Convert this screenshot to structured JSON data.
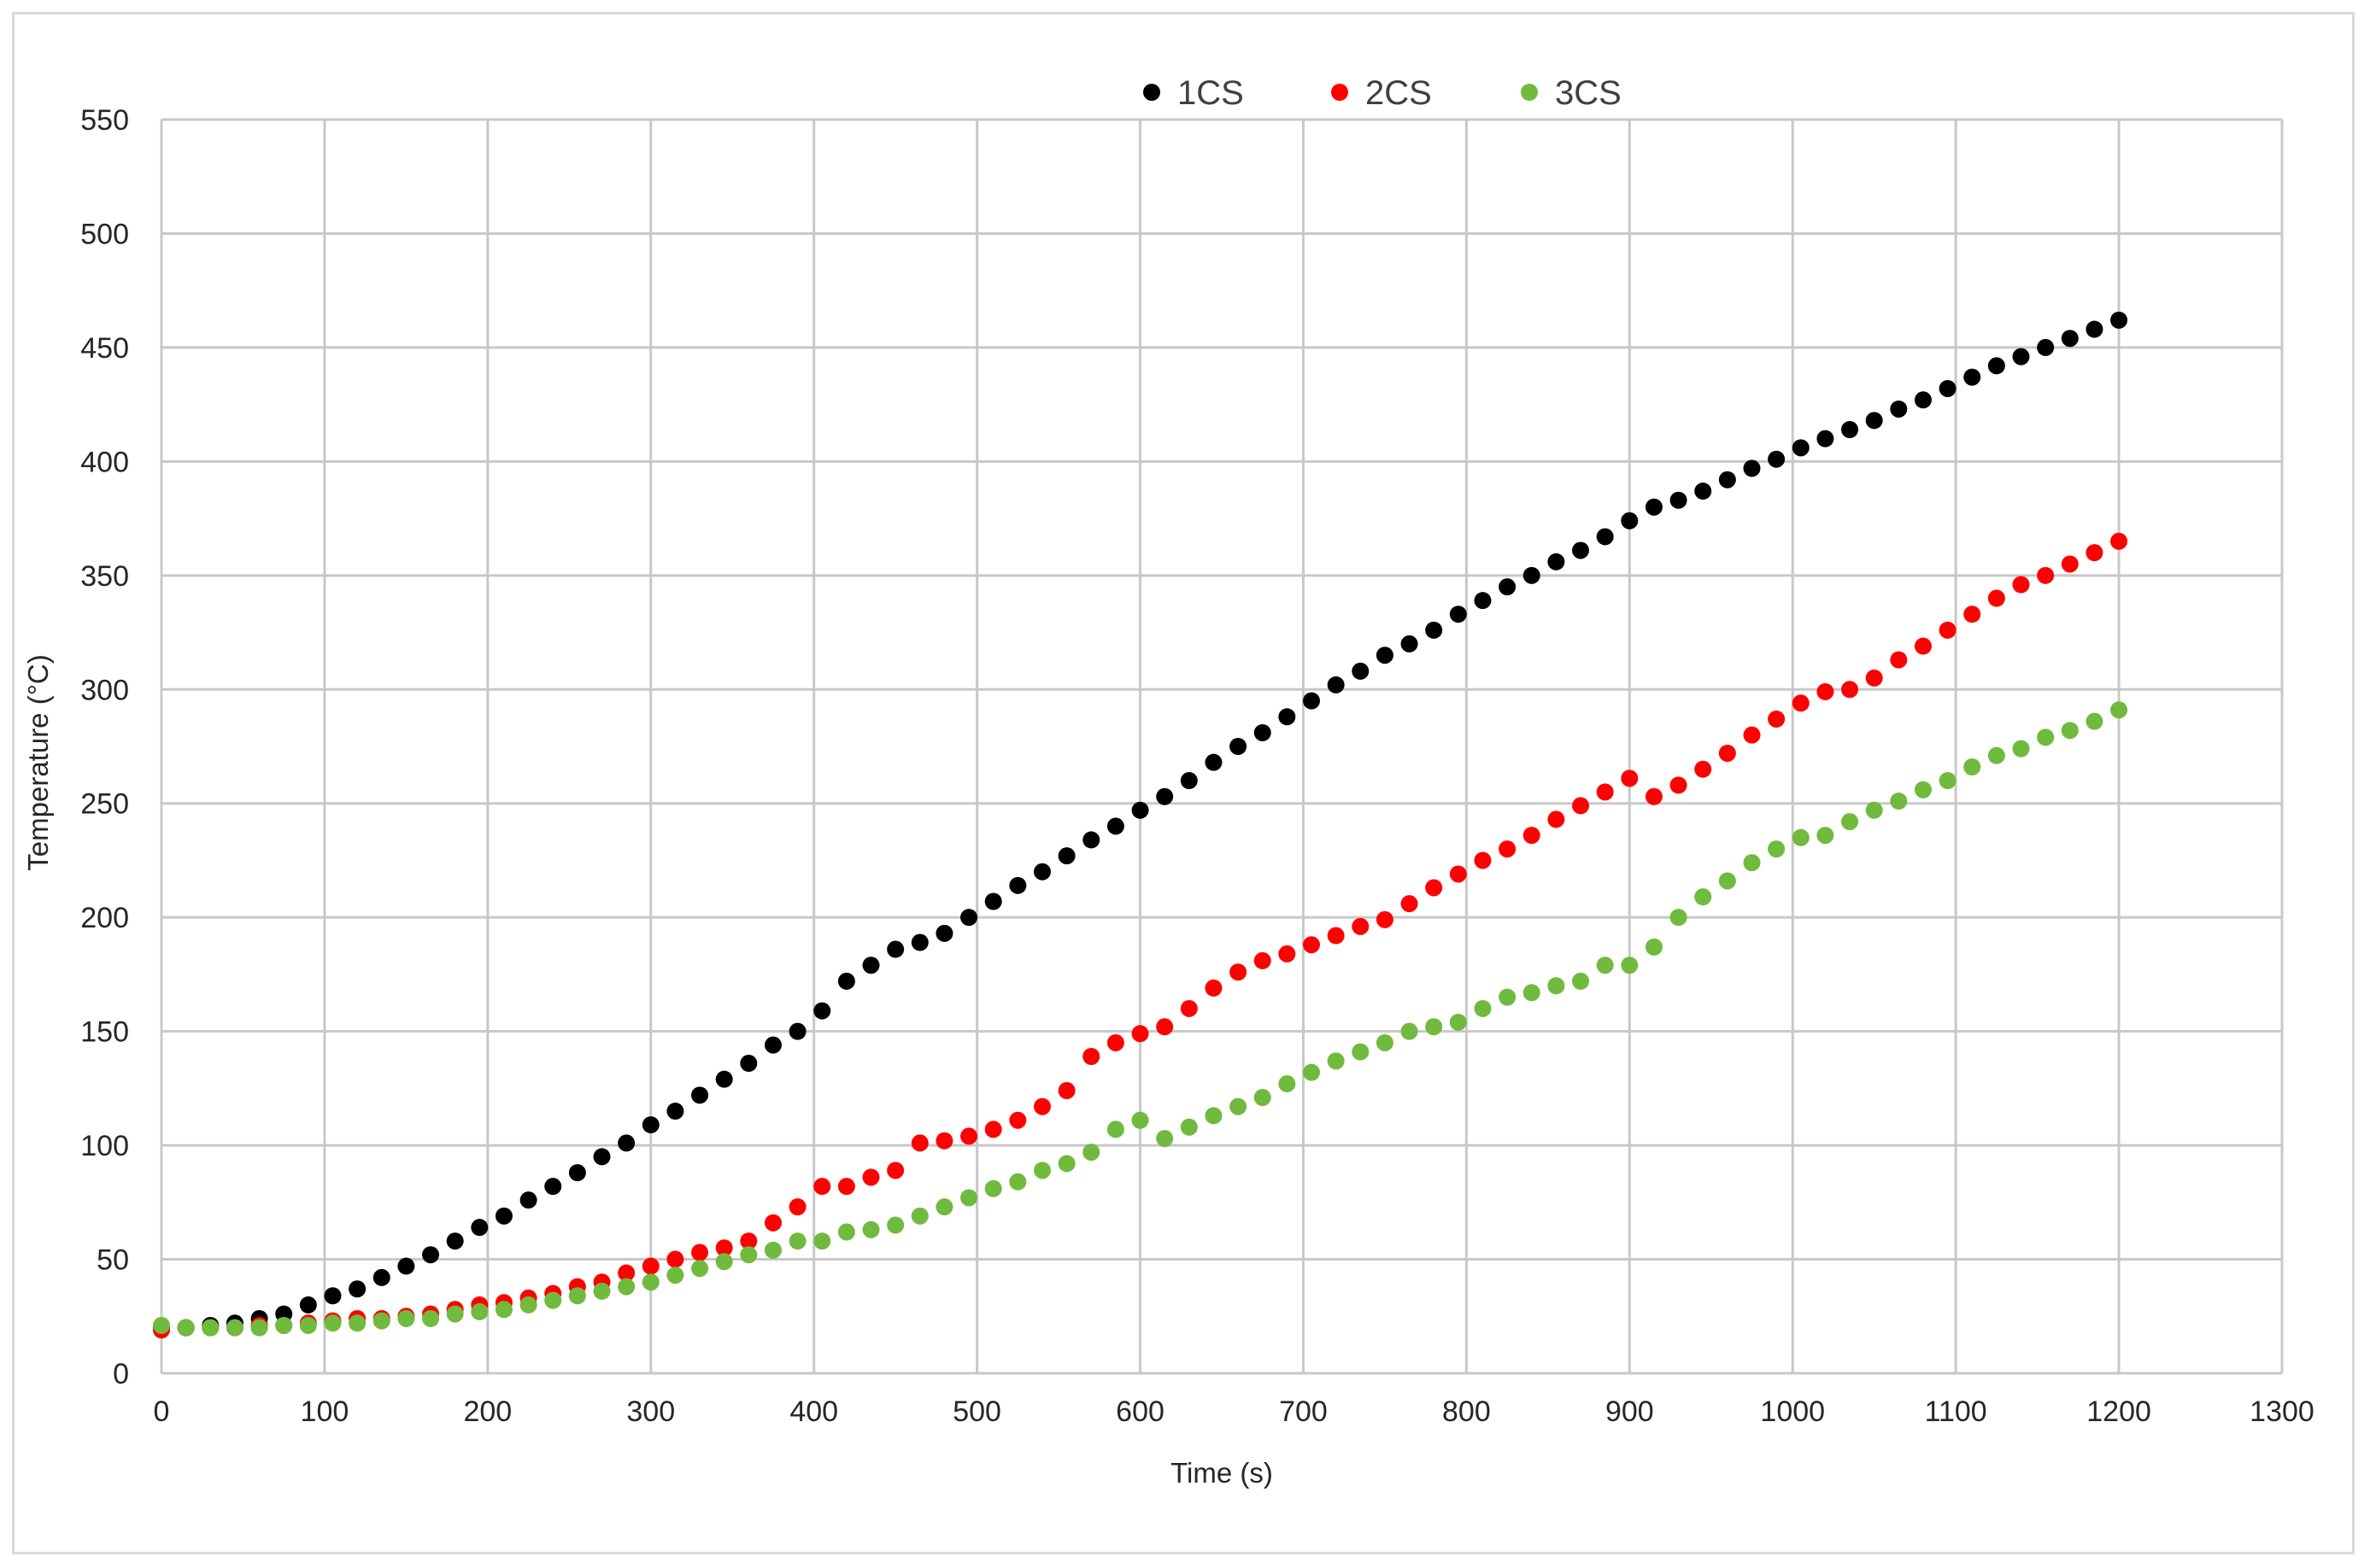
{
  "chart_data": {
    "type": "scatter",
    "title": "",
    "xlabel": "Time (s)",
    "ylabel": "Temperature (°C)",
    "xlim": [
      0,
      1300
    ],
    "ylim": [
      0,
      550
    ],
    "xticks": [
      0,
      100,
      200,
      300,
      400,
      500,
      600,
      700,
      800,
      900,
      1000,
      1100,
      1200,
      1300
    ],
    "yticks": [
      0,
      50,
      100,
      150,
      200,
      250,
      300,
      350,
      400,
      450,
      500,
      550
    ],
    "grid": true,
    "legend_position": "top-center",
    "series": [
      {
        "name": "1CS",
        "color": "#000000",
        "points": [
          [
            0,
            20
          ],
          [
            15,
            20
          ],
          [
            30,
            21
          ],
          [
            45,
            22
          ],
          [
            60,
            24
          ],
          [
            75,
            26
          ],
          [
            90,
            30
          ],
          [
            105,
            34
          ],
          [
            120,
            37
          ],
          [
            135,
            42
          ],
          [
            150,
            47
          ],
          [
            165,
            52
          ],
          [
            180,
            58
          ],
          [
            195,
            64
          ],
          [
            210,
            69
          ],
          [
            225,
            76
          ],
          [
            240,
            82
          ],
          [
            255,
            88
          ],
          [
            270,
            95
          ],
          [
            285,
            101
          ],
          [
            300,
            109
          ],
          [
            315,
            115
          ],
          [
            330,
            122
          ],
          [
            345,
            129
          ],
          [
            360,
            136
          ],
          [
            375,
            144
          ],
          [
            390,
            150
          ],
          [
            405,
            159
          ],
          [
            420,
            172
          ],
          [
            435,
            179
          ],
          [
            450,
            186
          ],
          [
            465,
            189
          ],
          [
            480,
            193
          ],
          [
            495,
            200
          ],
          [
            510,
            207
          ],
          [
            525,
            214
          ],
          [
            540,
            220
          ],
          [
            555,
            227
          ],
          [
            570,
            234
          ],
          [
            585,
            240
          ],
          [
            600,
            247
          ],
          [
            615,
            253
          ],
          [
            630,
            260
          ],
          [
            645,
            268
          ],
          [
            660,
            275
          ],
          [
            675,
            281
          ],
          [
            690,
            288
          ],
          [
            705,
            295
          ],
          [
            720,
            302
          ],
          [
            735,
            308
          ],
          [
            750,
            315
          ],
          [
            765,
            320
          ],
          [
            780,
            326
          ],
          [
            795,
            333
          ],
          [
            810,
            339
          ],
          [
            825,
            345
          ],
          [
            840,
            350
          ],
          [
            855,
            356
          ],
          [
            870,
            361
          ],
          [
            885,
            367
          ],
          [
            900,
            374
          ],
          [
            915,
            380
          ],
          [
            930,
            383
          ],
          [
            945,
            387
          ],
          [
            960,
            392
          ],
          [
            975,
            397
          ],
          [
            990,
            401
          ],
          [
            1005,
            406
          ],
          [
            1020,
            410
          ],
          [
            1035,
            414
          ],
          [
            1050,
            418
          ],
          [
            1065,
            423
          ],
          [
            1080,
            427
          ],
          [
            1095,
            432
          ],
          [
            1110,
            437
          ],
          [
            1125,
            442
          ],
          [
            1140,
            446
          ],
          [
            1155,
            450
          ],
          [
            1170,
            454
          ],
          [
            1185,
            458
          ],
          [
            1200,
            462
          ]
        ]
      },
      {
        "name": "2CS",
        "color": "#ff0000",
        "points": [
          [
            0,
            19
          ],
          [
            15,
            20
          ],
          [
            30,
            20
          ],
          [
            45,
            20
          ],
          [
            60,
            21
          ],
          [
            75,
            21
          ],
          [
            90,
            22
          ],
          [
            105,
            23
          ],
          [
            120,
            24
          ],
          [
            135,
            24
          ],
          [
            150,
            25
          ],
          [
            165,
            26
          ],
          [
            180,
            28
          ],
          [
            195,
            30
          ],
          [
            210,
            31
          ],
          [
            225,
            33
          ],
          [
            240,
            35
          ],
          [
            255,
            38
          ],
          [
            270,
            40
          ],
          [
            285,
            44
          ],
          [
            300,
            47
          ],
          [
            315,
            50
          ],
          [
            330,
            53
          ],
          [
            345,
            55
          ],
          [
            360,
            58
          ],
          [
            375,
            66
          ],
          [
            390,
            73
          ],
          [
            405,
            82
          ],
          [
            420,
            82
          ],
          [
            435,
            86
          ],
          [
            450,
            89
          ],
          [
            465,
            101
          ],
          [
            480,
            102
          ],
          [
            495,
            104
          ],
          [
            510,
            107
          ],
          [
            525,
            111
          ],
          [
            540,
            117
          ],
          [
            555,
            124
          ],
          [
            570,
            139
          ],
          [
            585,
            145
          ],
          [
            600,
            149
          ],
          [
            615,
            152
          ],
          [
            630,
            160
          ],
          [
            645,
            169
          ],
          [
            660,
            176
          ],
          [
            675,
            181
          ],
          [
            690,
            184
          ],
          [
            705,
            188
          ],
          [
            720,
            192
          ],
          [
            735,
            196
          ],
          [
            750,
            199
          ],
          [
            765,
            206
          ],
          [
            780,
            213
          ],
          [
            795,
            219
          ],
          [
            810,
            225
          ],
          [
            825,
            230
          ],
          [
            840,
            236
          ],
          [
            855,
            243
          ],
          [
            870,
            249
          ],
          [
            885,
            255
          ],
          [
            900,
            261
          ],
          [
            915,
            253
          ],
          [
            930,
            258
          ],
          [
            945,
            265
          ],
          [
            960,
            272
          ],
          [
            975,
            280
          ],
          [
            990,
            287
          ],
          [
            1005,
            294
          ],
          [
            1020,
            299
          ],
          [
            1035,
            300
          ],
          [
            1050,
            305
          ],
          [
            1065,
            313
          ],
          [
            1080,
            319
          ],
          [
            1095,
            326
          ],
          [
            1110,
            333
          ],
          [
            1125,
            340
          ],
          [
            1140,
            346
          ],
          [
            1155,
            350
          ],
          [
            1170,
            355
          ],
          [
            1185,
            360
          ],
          [
            1200,
            365
          ]
        ]
      },
      {
        "name": "3CS",
        "color": "#70ba3e",
        "points": [
          [
            0,
            21
          ],
          [
            15,
            20
          ],
          [
            30,
            20
          ],
          [
            45,
            20
          ],
          [
            60,
            20
          ],
          [
            75,
            21
          ],
          [
            90,
            21
          ],
          [
            105,
            22
          ],
          [
            120,
            22
          ],
          [
            135,
            23
          ],
          [
            150,
            24
          ],
          [
            165,
            24
          ],
          [
            180,
            26
          ],
          [
            195,
            27
          ],
          [
            210,
            28
          ],
          [
            225,
            30
          ],
          [
            240,
            32
          ],
          [
            255,
            34
          ],
          [
            270,
            36
          ],
          [
            285,
            38
          ],
          [
            300,
            40
          ],
          [
            315,
            43
          ],
          [
            330,
            46
          ],
          [
            345,
            49
          ],
          [
            360,
            52
          ],
          [
            375,
            54
          ],
          [
            390,
            58
          ],
          [
            405,
            58
          ],
          [
            420,
            62
          ],
          [
            435,
            63
          ],
          [
            450,
            65
          ],
          [
            465,
            69
          ],
          [
            480,
            73
          ],
          [
            495,
            77
          ],
          [
            510,
            81
          ],
          [
            525,
            84
          ],
          [
            540,
            89
          ],
          [
            555,
            92
          ],
          [
            570,
            97
          ],
          [
            585,
            107
          ],
          [
            600,
            111
          ],
          [
            615,
            103
          ],
          [
            630,
            108
          ],
          [
            645,
            113
          ],
          [
            660,
            117
          ],
          [
            675,
            121
          ],
          [
            690,
            127
          ],
          [
            705,
            132
          ],
          [
            720,
            137
          ],
          [
            735,
            141
          ],
          [
            750,
            145
          ],
          [
            765,
            150
          ],
          [
            780,
            152
          ],
          [
            795,
            154
          ],
          [
            810,
            160
          ],
          [
            825,
            165
          ],
          [
            840,
            167
          ],
          [
            855,
            170
          ],
          [
            870,
            172
          ],
          [
            885,
            179
          ],
          [
            900,
            179
          ],
          [
            915,
            187
          ],
          [
            930,
            200
          ],
          [
            945,
            209
          ],
          [
            960,
            216
          ],
          [
            975,
            224
          ],
          [
            990,
            230
          ],
          [
            1005,
            235
          ],
          [
            1020,
            236
          ],
          [
            1035,
            242
          ],
          [
            1050,
            247
          ],
          [
            1065,
            251
          ],
          [
            1080,
            256
          ],
          [
            1095,
            260
          ],
          [
            1110,
            266
          ],
          [
            1125,
            271
          ],
          [
            1140,
            274
          ],
          [
            1155,
            279
          ],
          [
            1170,
            282
          ],
          [
            1185,
            286
          ],
          [
            1200,
            291
          ]
        ]
      }
    ]
  }
}
